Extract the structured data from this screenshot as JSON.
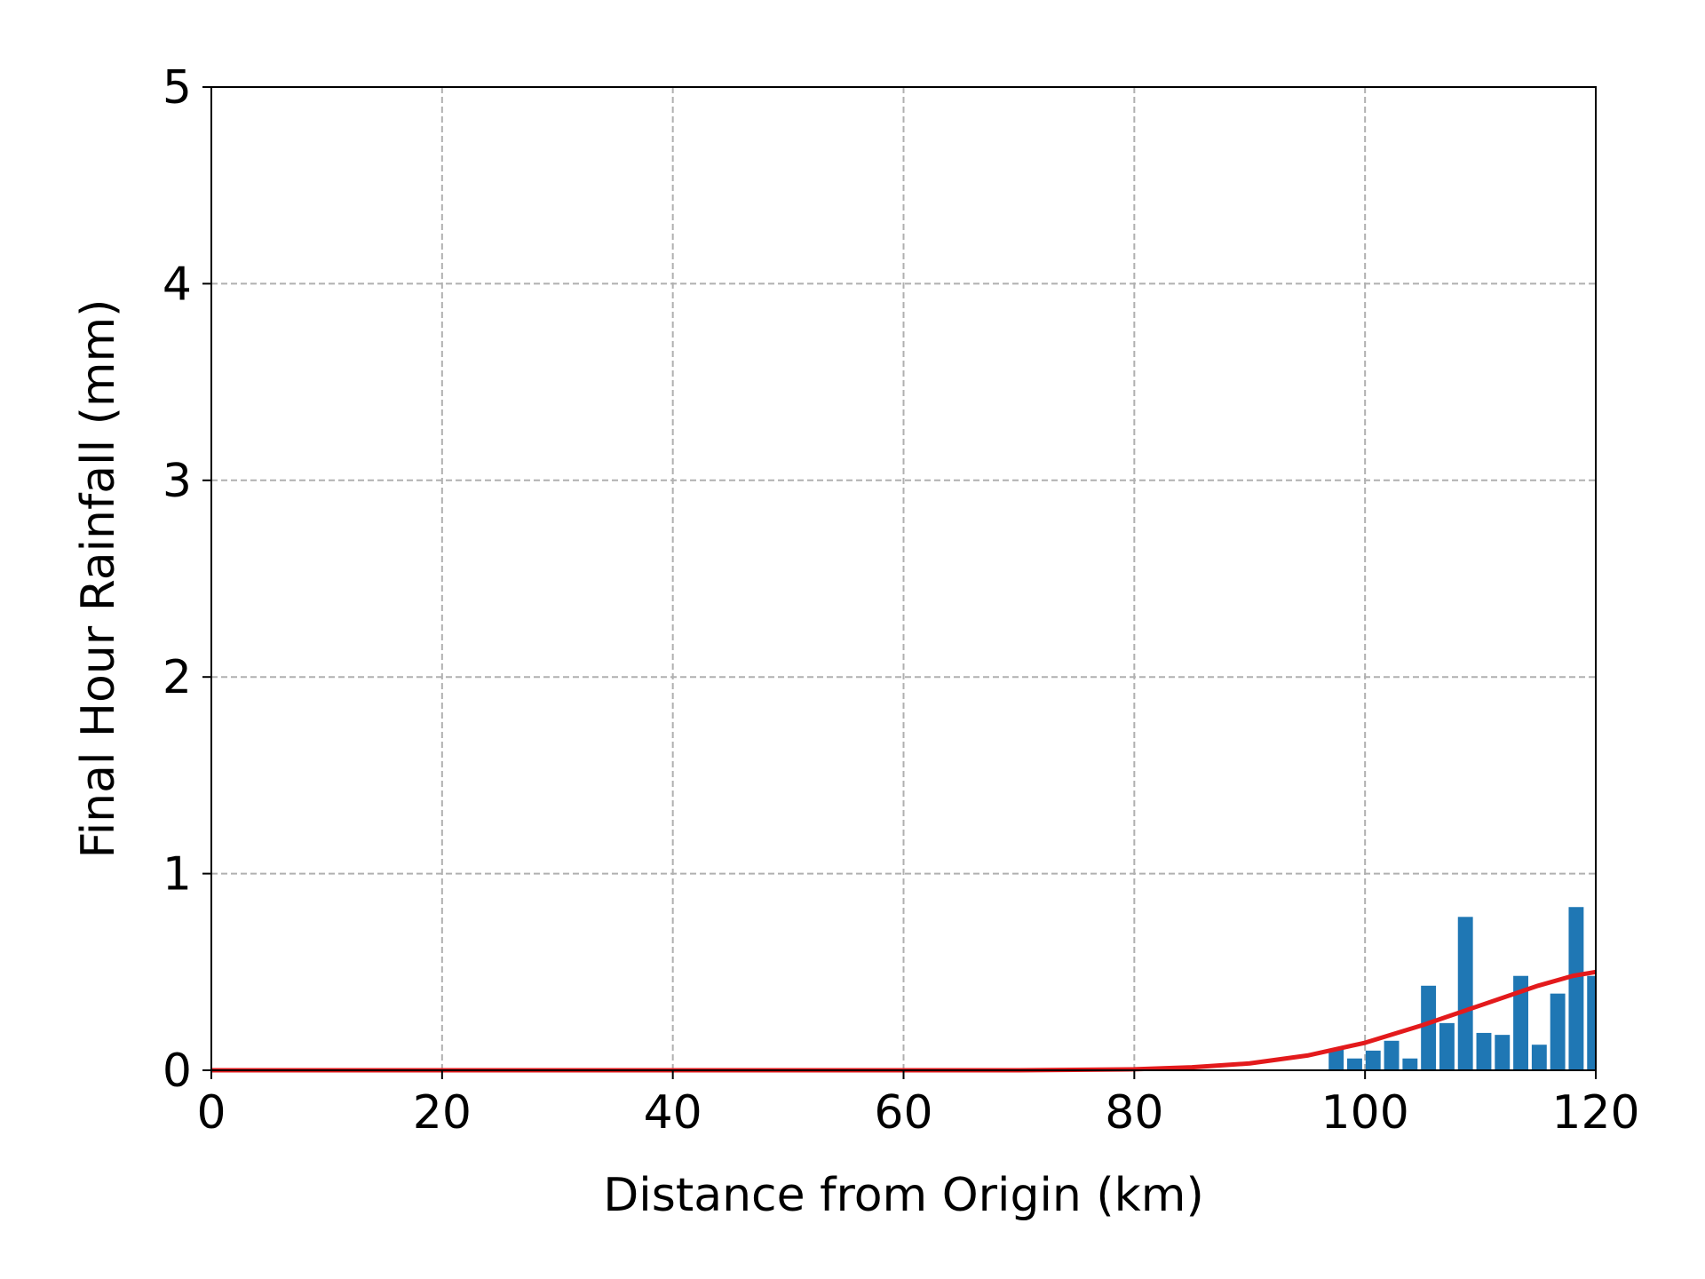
{
  "chart_data": {
    "type": "bar",
    "xlabel": "Distance from Origin (km)",
    "ylabel": "Final Hour Rainfall (mm)",
    "xlim": [
      0,
      120
    ],
    "ylim": [
      0,
      5
    ],
    "xticks": [
      0,
      20,
      40,
      60,
      80,
      100,
      120
    ],
    "yticks": [
      0,
      1,
      2,
      3,
      4,
      5
    ],
    "xtick_labels": [
      "0",
      "20",
      "40",
      "60",
      "80",
      "100",
      "120"
    ],
    "ytick_labels": [
      "0",
      "1",
      "2",
      "3",
      "4",
      "5"
    ],
    "grid": true,
    "bar_color": "#1f77b4",
    "line_color": "#e31a1c",
    "bars": {
      "x": [
        97.5,
        99.1,
        100.7,
        102.3,
        103.9,
        105.5,
        107.1,
        108.7,
        110.3,
        111.9,
        113.5,
        115.1,
        116.7,
        118.3,
        119.9
      ],
      "values": [
        0.11,
        0.06,
        0.1,
        0.15,
        0.06,
        0.43,
        0.24,
        0.78,
        0.19,
        0.18,
        0.48,
        0.13,
        0.39,
        0.83,
        0.48
      ],
      "width": 1.3
    },
    "line": {
      "x": [
        0,
        70,
        80,
        85,
        90,
        95,
        100,
        105,
        110,
        115,
        118,
        120
      ],
      "values": [
        0,
        0,
        0.005,
        0.015,
        0.035,
        0.075,
        0.14,
        0.23,
        0.33,
        0.43,
        0.48,
        0.5
      ]
    }
  }
}
